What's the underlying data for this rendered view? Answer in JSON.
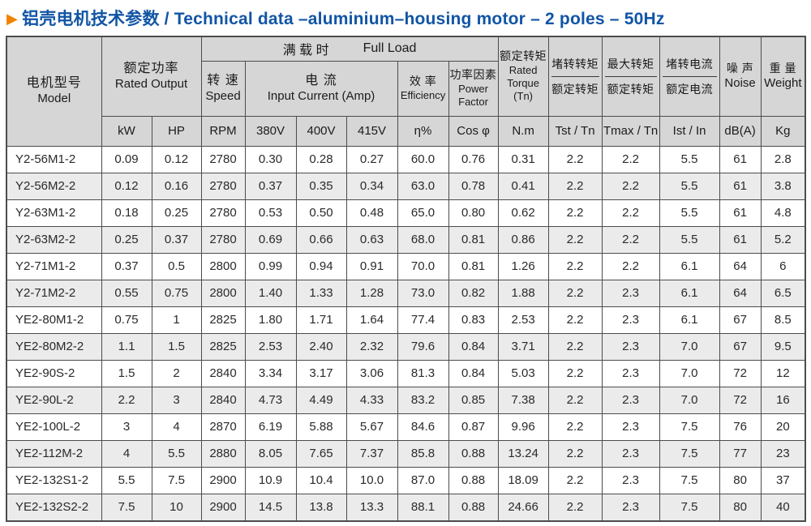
{
  "title": {
    "arrow_icon": "▶",
    "text": "铝壳电机技术参数 / Technical data –aluminium–housing motor – 2 poles – 50Hz"
  },
  "colors": {
    "title_blue": "#1155a5",
    "arrow_orange": "#f08300",
    "header_bg": "#d6d6d6",
    "stripe_bg": "#ebebeb",
    "border": "#4c4c4c"
  },
  "table": {
    "header": {
      "model_zh": "电机型号",
      "model_en": "Model",
      "rated_output_zh": "额定功率",
      "rated_output_en": "Rated Output",
      "full_load_zh": "满 载 时",
      "full_load_en": "Full Load",
      "speed_zh": "转 速",
      "speed_en": "Speed",
      "current_zh": "电  流",
      "current_en": "Input  Current (Amp)",
      "efficiency_zh": "效 率",
      "efficiency_en": "Efficiency",
      "power_factor_zh": "功率因素",
      "power_factor_en1": "Power",
      "power_factor_en2": "Factor",
      "rated_torque_zh": "额定转矩",
      "rated_torque_en1": "Rated",
      "rated_torque_en2": "Torque",
      "rated_torque_en3": "(Tn)",
      "tst_top": "堵转转矩",
      "tst_bottom": "额定转矩",
      "tmax_top": "最大转矩",
      "tmax_bottom": "额定转矩",
      "ist_top": "堵转电流",
      "ist_bottom": "额定电流",
      "noise_zh": "噪 声",
      "noise_en": "Noise",
      "weight_zh": "重 量",
      "weight_en": "Weight",
      "units": [
        "kW",
        "HP",
        "RPM",
        "380V",
        "400V",
        "415V",
        "η%",
        "Cos φ",
        "N.m",
        "Tst / Tn",
        "Tmax / Tn",
        "Ist / In",
        "dB(A)",
        "Kg"
      ]
    },
    "rows": [
      [
        "Y2-56M1-2",
        "0.09",
        "0.12",
        "2780",
        "0.30",
        "0.28",
        "0.27",
        "60.0",
        "0.76",
        "0.31",
        "2.2",
        "2.2",
        "5.5",
        "61",
        "2.8"
      ],
      [
        "Y2-56M2-2",
        "0.12",
        "0.16",
        "2780",
        "0.37",
        "0.35",
        "0.34",
        "63.0",
        "0.78",
        "0.41",
        "2.2",
        "2.2",
        "5.5",
        "61",
        "3.8"
      ],
      [
        "Y2-63M1-2",
        "0.18",
        "0.25",
        "2780",
        "0.53",
        "0.50",
        "0.48",
        "65.0",
        "0.80",
        "0.62",
        "2.2",
        "2.2",
        "5.5",
        "61",
        "4.8"
      ],
      [
        "Y2-63M2-2",
        "0.25",
        "0.37",
        "2780",
        "0.69",
        "0.66",
        "0.63",
        "68.0",
        "0.81",
        "0.86",
        "2.2",
        "2.2",
        "5.5",
        "61",
        "5.2"
      ],
      [
        "Y2-71M1-2",
        "0.37",
        "0.5",
        "2800",
        "0.99",
        "0.94",
        "0.91",
        "70.0",
        "0.81",
        "1.26",
        "2.2",
        "2.2",
        "6.1",
        "64",
        "6"
      ],
      [
        "Y2-71M2-2",
        "0.55",
        "0.75",
        "2800",
        "1.40",
        "1.33",
        "1.28",
        "73.0",
        "0.82",
        "1.88",
        "2.2",
        "2.3",
        "6.1",
        "64",
        "6.5"
      ],
      [
        "YE2-80M1-2",
        "0.75",
        "1",
        "2825",
        "1.80",
        "1.71",
        "1.64",
        "77.4",
        "0.83",
        "2.53",
        "2.2",
        "2.3",
        "6.1",
        "67",
        "8.5"
      ],
      [
        "YE2-80M2-2",
        "1.1",
        "1.5",
        "2825",
        "2.53",
        "2.40",
        "2.32",
        "79.6",
        "0.84",
        "3.71",
        "2.2",
        "2.3",
        "7.0",
        "67",
        "9.5"
      ],
      [
        "YE2-90S-2",
        "1.5",
        "2",
        "2840",
        "3.34",
        "3.17",
        "3.06",
        "81.3",
        "0.84",
        "5.03",
        "2.2",
        "2.3",
        "7.0",
        "72",
        "12"
      ],
      [
        "YE2-90L-2",
        "2.2",
        "3",
        "2840",
        "4.73",
        "4.49",
        "4.33",
        "83.2",
        "0.85",
        "7.38",
        "2.2",
        "2.3",
        "7.0",
        "72",
        "16"
      ],
      [
        "YE2-100L-2",
        "3",
        "4",
        "2870",
        "6.19",
        "5.88",
        "5.67",
        "84.6",
        "0.87",
        "9.96",
        "2.2",
        "2.3",
        "7.5",
        "76",
        "20"
      ],
      [
        "YE2-112M-2",
        "4",
        "5.5",
        "2880",
        "8.05",
        "7.65",
        "7.37",
        "85.8",
        "0.88",
        "13.24",
        "2.2",
        "2.3",
        "7.5",
        "77",
        "23"
      ],
      [
        "YE2-132S1-2",
        "5.5",
        "7.5",
        "2900",
        "10.9",
        "10.4",
        "10.0",
        "87.0",
        "0.88",
        "18.09",
        "2.2",
        "2.3",
        "7.5",
        "80",
        "37"
      ],
      [
        "YE2-132S2-2",
        "7.5",
        "10",
        "2900",
        "14.5",
        "13.8",
        "13.3",
        "88.1",
        "0.88",
        "24.66",
        "2.2",
        "2.3",
        "7.5",
        "80",
        "40"
      ]
    ]
  }
}
